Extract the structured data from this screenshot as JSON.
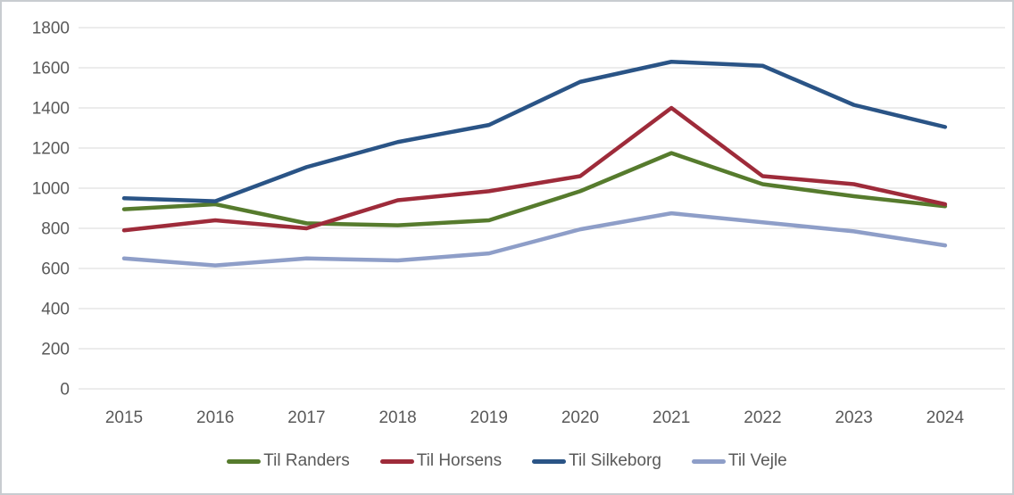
{
  "chart_data": {
    "type": "line",
    "title": "",
    "xlabel": "",
    "ylabel": "",
    "x": [
      "2015",
      "2016",
      "2017",
      "2018",
      "2019",
      "2020",
      "2021",
      "2022",
      "2023",
      "2024"
    ],
    "series": [
      {
        "name": "Til Randers",
        "color": "#567B2D",
        "values": [
          895,
          920,
          825,
          815,
          840,
          985,
          1175,
          1020,
          960,
          910
        ]
      },
      {
        "name": "Til Horsens",
        "color": "#9E2B3A",
        "values": [
          790,
          840,
          800,
          940,
          985,
          1060,
          1400,
          1060,
          1020,
          920
        ]
      },
      {
        "name": "Til Silkeborg",
        "color": "#2A5486",
        "values": [
          950,
          935,
          1105,
          1230,
          1315,
          1530,
          1630,
          1610,
          1415,
          1305
        ]
      },
      {
        "name": "Til Vejle",
        "color": "#8E9EC8",
        "values": [
          650,
          615,
          650,
          640,
          675,
          795,
          875,
          830,
          785,
          715
        ]
      }
    ],
    "ylim": [
      0,
      1800
    ],
    "y_ticks": [
      0,
      200,
      400,
      600,
      800,
      1000,
      1200,
      1400,
      1600,
      1800
    ],
    "grid": true,
    "legend_position": "bottom",
    "axis_text_color": "#595959",
    "gridline_color": "#D9D9D9",
    "background": "#FFFFFF",
    "border_color": "#C8CCD0"
  }
}
